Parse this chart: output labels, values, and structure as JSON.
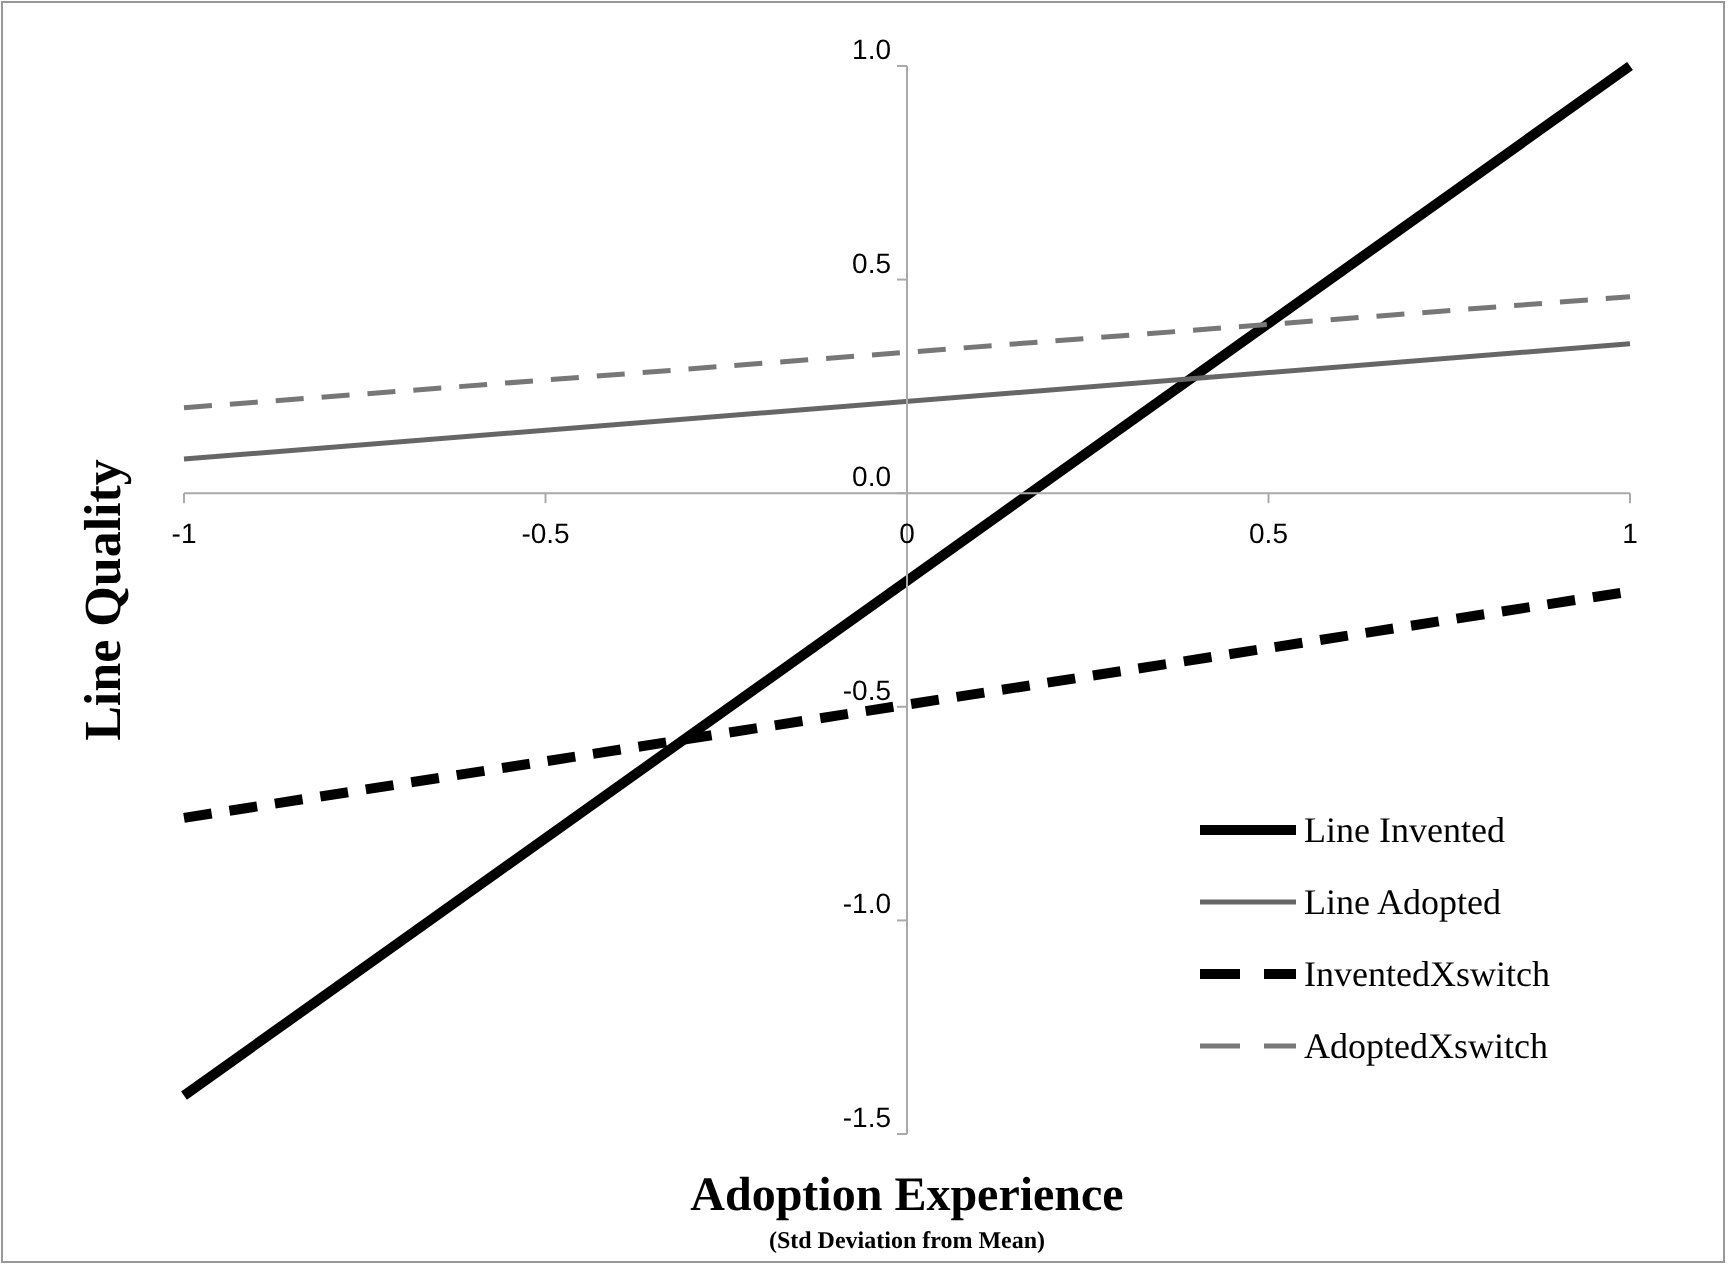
{
  "chart_data": {
    "type": "line",
    "xlabel": "Adoption Experience",
    "subtitle": "(Std Deviation from Mean)",
    "ylabel": "Line Quality",
    "x": [
      -1,
      1
    ],
    "xlim": [
      -1,
      1
    ],
    "xticks": [
      -1,
      -0.5,
      0,
      0.5,
      1
    ],
    "ylim": [
      -1.5,
      1.0
    ],
    "yticks": [
      {
        "value": -1.5,
        "label": "-1.5"
      },
      {
        "value": -1.0,
        "label": "-1.0"
      },
      {
        "value": -0.5,
        "label": "-0.5"
      },
      {
        "value": 0,
        "label": "0.0"
      },
      {
        "value": 0.5,
        "label": "0.5"
      },
      {
        "value": 1.0,
        "label": "1.0"
      }
    ],
    "grid": false,
    "legend": "bottom right",
    "marker": "none",
    "series": [
      {
        "name": "Line Invented",
        "color": "#000000",
        "line_style": "solid",
        "values": [
          -1.41,
          1.0
        ]
      },
      {
        "name": "Line Adopted",
        "color": "#666666",
        "line_style": "solid",
        "values": [
          0.08,
          0.35
        ]
      },
      {
        "name": "InventedXswitch",
        "color": "#000000",
        "line_style": "dashed",
        "values": [
          -0.76,
          -0.23
        ]
      },
      {
        "name": "AdoptedXswitch",
        "color": "#777777",
        "line_style": "dashed",
        "values": [
          0.2,
          0.46
        ]
      }
    ]
  }
}
